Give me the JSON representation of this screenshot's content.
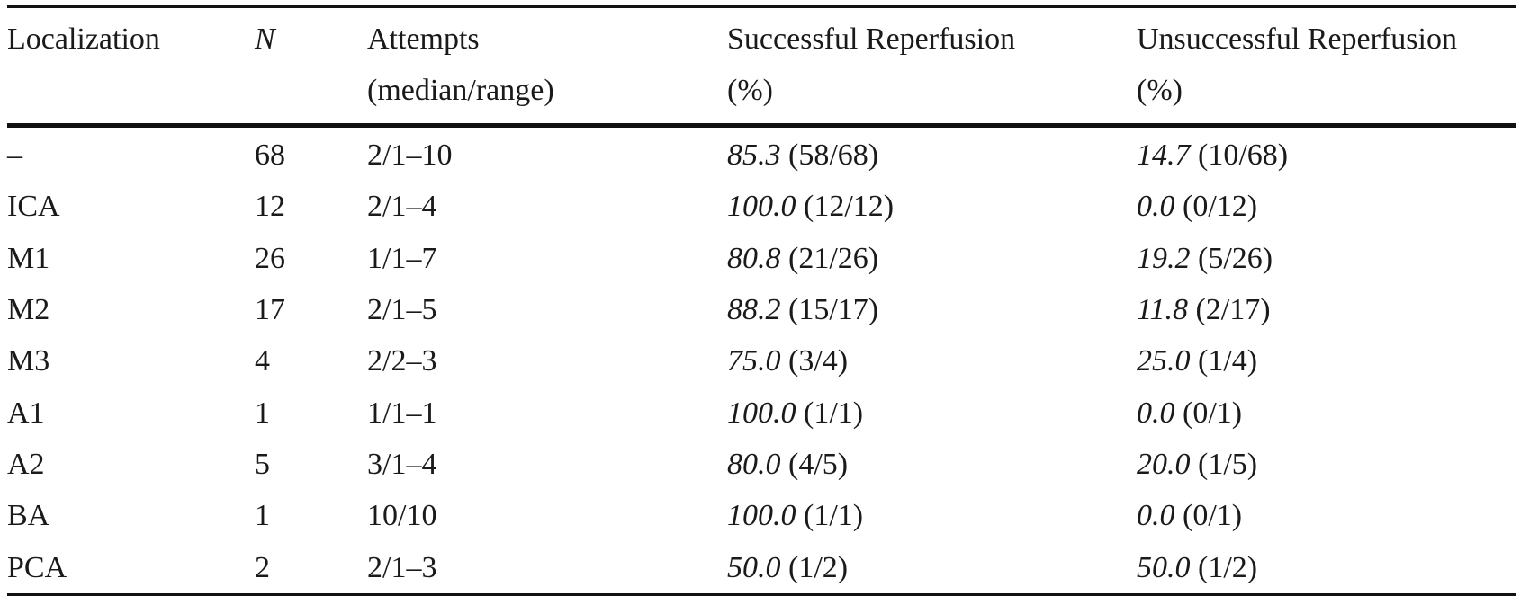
{
  "table": {
    "headers": {
      "localization": "Localization",
      "n": "N",
      "attempts_line1": "Attempts",
      "attempts_line2": "(median/range)",
      "successful_line1": "Successful Reperfusion",
      "successful_line2": "(%)",
      "unsuccessful_line1": "Unsuccessful Reperfusion",
      "unsuccessful_line2": "(%)"
    },
    "rows": [
      {
        "localization": "–",
        "n": "68",
        "attempts": "2/1–10",
        "succ_pct": "85.3",
        "succ_frac": " (58/68)",
        "unsucc_pct": "14.7",
        "unsucc_frac": " (10/68)"
      },
      {
        "localization": "ICA",
        "n": "12",
        "attempts": "2/1–4",
        "succ_pct": "100.0",
        "succ_frac": " (12/12)",
        "unsucc_pct": "0.0",
        "unsucc_frac": " (0/12)"
      },
      {
        "localization": "M1",
        "n": "26",
        "attempts": "1/1–7",
        "succ_pct": "80.8",
        "succ_frac": " (21/26)",
        "unsucc_pct": "19.2",
        "unsucc_frac": " (5/26)"
      },
      {
        "localization": "M2",
        "n": "17",
        "attempts": "2/1–5",
        "succ_pct": "88.2",
        "succ_frac": " (15/17)",
        "unsucc_pct": "11.8",
        "unsucc_frac": " (2/17)"
      },
      {
        "localization": "M3",
        "n": "4",
        "attempts": "2/2–3",
        "succ_pct": "75.0",
        "succ_frac": " (3/4)",
        "unsucc_pct": "25.0",
        "unsucc_frac": " (1/4)"
      },
      {
        "localization": "A1",
        "n": "1",
        "attempts": "1/1–1",
        "succ_pct": "100.0",
        "succ_frac": " (1/1)",
        "unsucc_pct": "0.0",
        "unsucc_frac": " (0/1)"
      },
      {
        "localization": "A2",
        "n": "5",
        "attempts": "3/1–4",
        "succ_pct": "80.0",
        "succ_frac": " (4/5)",
        "unsucc_pct": "20.0",
        "unsucc_frac": " (1/5)"
      },
      {
        "localization": "BA",
        "n": "1",
        "attempts": "10/10",
        "succ_pct": "100.0",
        "succ_frac": " (1/1)",
        "unsucc_pct": "0.0",
        "unsucc_frac": " (0/1)"
      },
      {
        "localization": "PCA",
        "n": "2",
        "attempts": "2/1–3",
        "succ_pct": "50.0",
        "succ_frac": " (1/2)",
        "unsucc_pct": "50.0",
        "unsucc_frac": " (1/2)"
      }
    ]
  }
}
